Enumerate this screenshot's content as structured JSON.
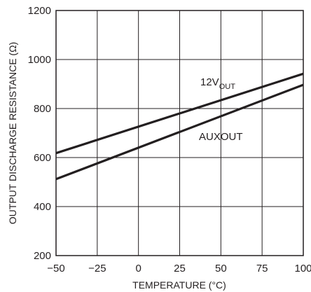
{
  "chart_data": {
    "type": "line",
    "xlabel": "TEMPERATURE (°C)",
    "ylabel": "OUTPUT DISCHARGE RESISTANCE (Ω)",
    "xlim": [
      -50,
      100
    ],
    "ylim": [
      200,
      1200
    ],
    "x_ticks": [
      "−50",
      "−25",
      "0",
      "25",
      "50",
      "75",
      "100"
    ],
    "y_ticks": [
      "200",
      "400",
      "600",
      "800",
      "1000",
      "1200"
    ],
    "x_tick_values": [
      -50,
      -25,
      0,
      25,
      50,
      75,
      100
    ],
    "y_tick_values": [
      200,
      400,
      600,
      800,
      1000,
      1200
    ],
    "grid": true,
    "series": [
      {
        "name": "12V",
        "name_subscript": "OUT",
        "x": [
          -50,
          100
        ],
        "y": [
          618,
          942
        ]
      },
      {
        "name": "AUXOUT",
        "x": [
          -50,
          100
        ],
        "y": [
          512,
          897
        ]
      }
    ]
  }
}
